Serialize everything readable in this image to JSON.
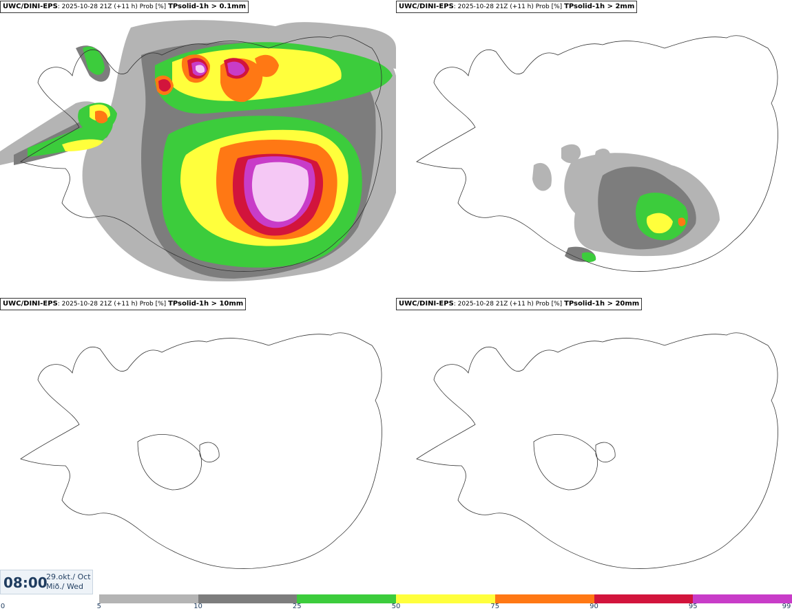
{
  "panels": [
    {
      "source": "UWC/DINI-EPS",
      "run": "2025-10-28 21Z (+11 h) Prob [%]",
      "variable": "TPsolid-1h > 0.1mm",
      "intensity": "high"
    },
    {
      "source": "UWC/DINI-EPS",
      "run": "2025-10-28 21Z (+11 h) Prob [%]",
      "variable": "TPsolid-1h > 2mm",
      "intensity": "medium"
    },
    {
      "source": "UWC/DINI-EPS",
      "run": "2025-10-28 21Z (+11 h) Prob [%]",
      "variable": "TPsolid-1h > 10mm",
      "intensity": "none"
    },
    {
      "source": "UWC/DINI-EPS",
      "run": "2025-10-28 21Z (+11 h) Prob [%]",
      "variable": "TPsolid-1h > 20mm",
      "intensity": "none"
    }
  ],
  "valid_time": {
    "hour": "08:00",
    "date": "29.okt./ Oct",
    "weekday": "Mið./ Wed"
  },
  "legend": {
    "ticks": [
      "0",
      "5",
      "10",
      "25",
      "50",
      "75",
      "90",
      "95",
      "99"
    ],
    "colors": [
      "#ffffff",
      "#b4b4b4",
      "#7d7d7d",
      "#3ccc3c",
      "#ffff3c",
      "#ff7814",
      "#d2143c",
      "#c83cc8",
      "#f5c8f5"
    ]
  }
}
